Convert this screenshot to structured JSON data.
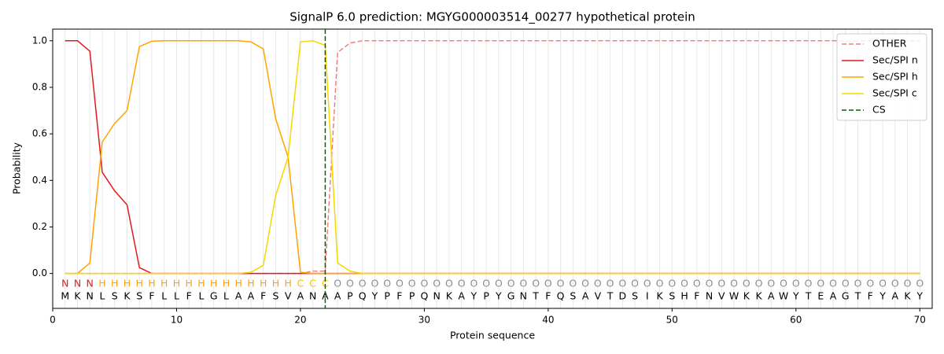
{
  "chart_data": {
    "type": "line",
    "title": "SignalP 6.0 prediction: MGYG000003514_00277 hypothetical protein",
    "x_label": "Protein sequence",
    "y_label": "Probability",
    "x": [
      1,
      2,
      3,
      4,
      5,
      6,
      7,
      8,
      9,
      10,
      11,
      12,
      13,
      14,
      15,
      16,
      17,
      18,
      19,
      20,
      21,
      22,
      23,
      24,
      25,
      26,
      27,
      28,
      29,
      30,
      31,
      32,
      33,
      34,
      35,
      36,
      37,
      38,
      39,
      40,
      41,
      42,
      43,
      44,
      45,
      46,
      47,
      48,
      49,
      50,
      51,
      52,
      53,
      54,
      55,
      56,
      57,
      58,
      59,
      60,
      61,
      62,
      63,
      64,
      65,
      66,
      67,
      68,
      69,
      70
    ],
    "sequence": [
      "M",
      "K",
      "N",
      "L",
      "S",
      "K",
      "S",
      "F",
      "L",
      "L",
      "F",
      "L",
      "G",
      "L",
      "A",
      "A",
      "F",
      "S",
      "V",
      "A",
      "N",
      "A",
      "A",
      "P",
      "Q",
      "Y",
      "P",
      "F",
      "P",
      "Q",
      "N",
      "K",
      "A",
      "Y",
      "P",
      "Y",
      "G",
      "N",
      "T",
      "F",
      "Q",
      "S",
      "A",
      "V",
      "T",
      "D",
      "S",
      "I",
      "K",
      "S",
      "H",
      "F",
      "N",
      "V",
      "W",
      "K",
      "K",
      "A",
      "W",
      "Y",
      "T",
      "E",
      "A",
      "G",
      "T",
      "F",
      "Y",
      "A",
      "K",
      "Y"
    ],
    "residue_labels": [
      "N",
      "N",
      "N",
      "H",
      "H",
      "H",
      "H",
      "H",
      "H",
      "H",
      "H",
      "H",
      "H",
      "H",
      "H",
      "H",
      "H",
      "H",
      "H",
      "C",
      "C",
      "C",
      "O",
      "O",
      "O",
      "O",
      "O",
      "O",
      "O",
      "O",
      "O",
      "O",
      "O",
      "O",
      "O",
      "O",
      "O",
      "O",
      "O",
      "O",
      "O",
      "O",
      "O",
      "O",
      "O",
      "O",
      "O",
      "O",
      "O",
      "O",
      "O",
      "O",
      "O",
      "O",
      "O",
      "O",
      "O",
      "O",
      "O",
      "O",
      "O",
      "O",
      "O",
      "O",
      "O",
      "O",
      "O",
      "O",
      "O",
      "O"
    ],
    "label_colors": {
      "N": "#e31a1c",
      "H": "#ffa500",
      "C": "#f5c400",
      "O": "#8c8c8c"
    },
    "series": [
      {
        "name": "OTHER",
        "color": "#f08080",
        "dashed": true,
        "values": [
          0,
          0,
          0,
          0,
          0,
          0,
          0,
          0,
          0,
          0,
          0,
          0,
          0,
          0,
          0,
          0,
          0,
          0,
          0,
          0,
          0.01,
          0.01,
          0.95,
          0.99,
          1,
          1,
          1,
          1,
          1,
          1,
          1,
          1,
          1,
          1,
          1,
          1,
          1,
          1,
          1,
          1,
          1,
          1,
          1,
          1,
          1,
          1,
          1,
          1,
          1,
          1,
          1,
          1,
          1,
          1,
          1,
          1,
          1,
          1,
          1,
          1,
          1,
          1,
          1,
          1,
          1,
          1,
          1,
          1,
          1,
          1
        ]
      },
      {
        "name": "Sec/SPI n",
        "color": "#e31a1c",
        "values": [
          1,
          1,
          0.955,
          0.435,
          0.355,
          0.295,
          0.025,
          0,
          0,
          0,
          0,
          0,
          0,
          0,
          0,
          0,
          0,
          0,
          0,
          0,
          0,
          0,
          0,
          0,
          0,
          0,
          0,
          0,
          0,
          0,
          0,
          0,
          0,
          0,
          0,
          0,
          0,
          0,
          0,
          0,
          0,
          0,
          0,
          0,
          0,
          0,
          0,
          0,
          0,
          0,
          0,
          0,
          0,
          0,
          0,
          0,
          0,
          0,
          0,
          0,
          0,
          0,
          0,
          0,
          0,
          0,
          0,
          0,
          0,
          0
        ]
      },
      {
        "name": "Sec/SPI h",
        "color": "#ffa500",
        "values": [
          0,
          0,
          0.045,
          0.565,
          0.645,
          0.7,
          0.975,
          0.998,
          1,
          1,
          1,
          1,
          1,
          1,
          1,
          0.995,
          0.965,
          0.665,
          0.5,
          0.005,
          0,
          0,
          0,
          0,
          0,
          0,
          0,
          0,
          0,
          0,
          0,
          0,
          0,
          0,
          0,
          0,
          0,
          0,
          0,
          0,
          0,
          0,
          0,
          0,
          0,
          0,
          0,
          0,
          0,
          0,
          0,
          0,
          0,
          0,
          0,
          0,
          0,
          0,
          0,
          0,
          0,
          0,
          0,
          0,
          0,
          0,
          0,
          0,
          0,
          0
        ]
      },
      {
        "name": "Sec/SPI c",
        "color": "#f5d800",
        "values": [
          0,
          0,
          0,
          0,
          0,
          0,
          0,
          0,
          0,
          0,
          0,
          0,
          0,
          0,
          0,
          0.005,
          0.035,
          0.335,
          0.5,
          0.995,
          1,
          0.98,
          0.045,
          0.01,
          0,
          0,
          0,
          0,
          0,
          0,
          0,
          0,
          0,
          0,
          0,
          0,
          0,
          0,
          0,
          0,
          0,
          0,
          0,
          0,
          0,
          0,
          0,
          0,
          0,
          0,
          0,
          0,
          0,
          0,
          0,
          0,
          0,
          0,
          0,
          0,
          0,
          0,
          0,
          0,
          0,
          0,
          0,
          0,
          0,
          0
        ]
      }
    ],
    "cs": {
      "name": "CS",
      "x": 22,
      "color": "#006400"
    },
    "xlim": [
      0,
      71
    ],
    "xticks": [
      0,
      10,
      20,
      30,
      40,
      50,
      60,
      70
    ],
    "ylim": [
      -0.15,
      1.05
    ],
    "yticks": [
      {
        "value": 0,
        "label": "0.0"
      },
      {
        "value": 0.2,
        "label": "0.2"
      },
      {
        "value": 0.4,
        "label": "0.4"
      },
      {
        "value": 0.6,
        "label": "0.6"
      },
      {
        "value": 0.8,
        "label": "0.8"
      },
      {
        "value": 1,
        "label": "1.0"
      }
    ],
    "legend": "upper right"
  }
}
